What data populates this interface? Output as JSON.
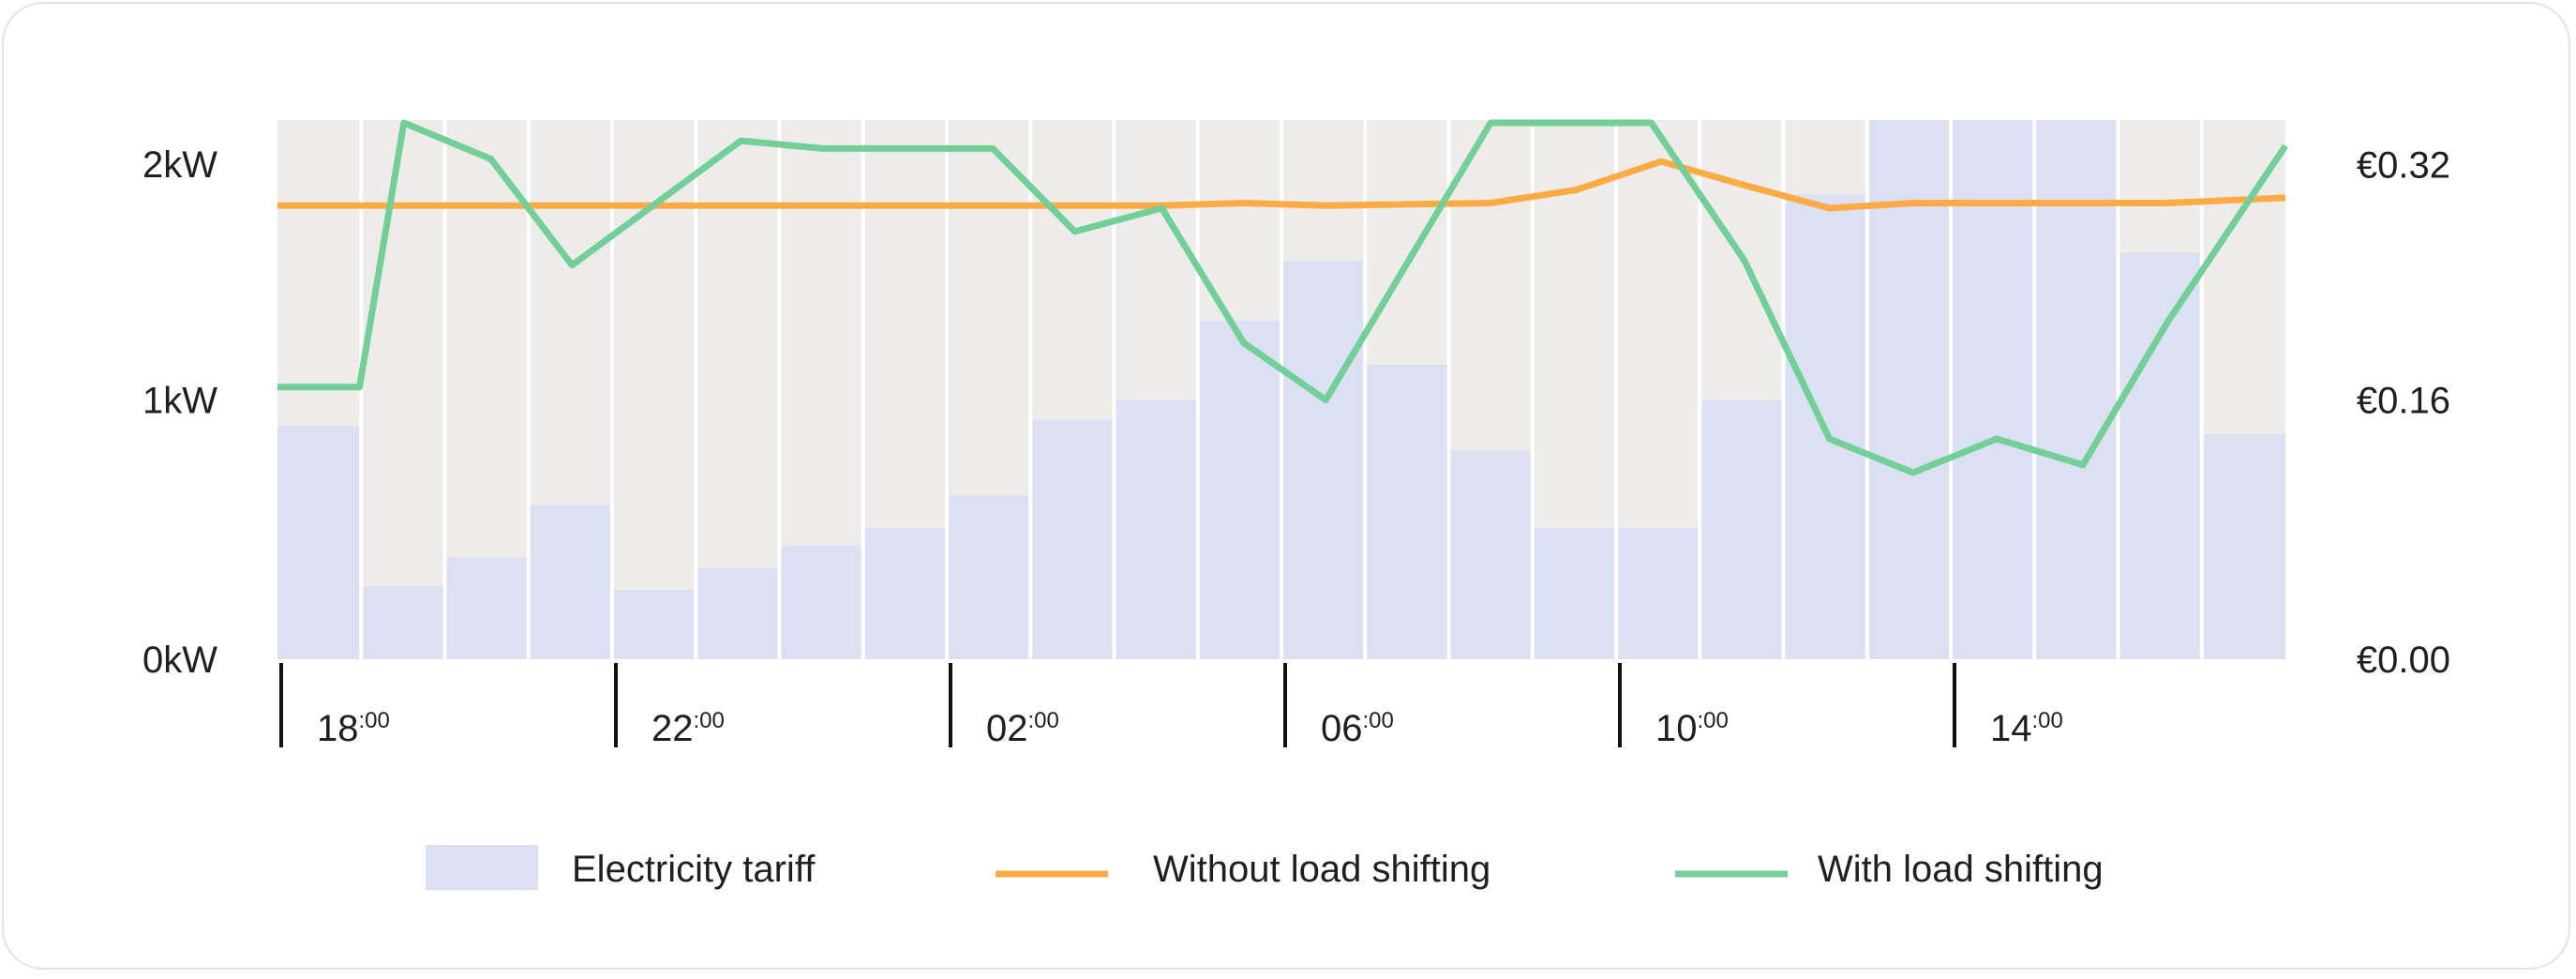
{
  "chart_data": {
    "type": "bar+line",
    "title": "",
    "x_start_hour": 18,
    "x_tick_labels": [
      {
        "hour": "18",
        "min": ":00"
      },
      {
        "hour": "22",
        "min": ":00"
      },
      {
        "hour": "02",
        "min": ":00"
      },
      {
        "hour": "06",
        "min": ":00"
      },
      {
        "hour": "10",
        "min": ":00"
      },
      {
        "hour": "14",
        "min": ":00"
      }
    ],
    "y_left": {
      "ticks": [
        {
          "v": 0,
          "label": "0kW"
        },
        {
          "v": 1,
          "label": "1kW"
        },
        {
          "v": 2,
          "label": "2kW"
        }
      ],
      "range": [
        0,
        2.08
      ]
    },
    "y_right": {
      "ticks": [
        {
          "v": 0,
          "label": "€0.00"
        },
        {
          "v": 0.16,
          "label": "€0.16"
        },
        {
          "v": 0.32,
          "label": "€0.32"
        }
      ],
      "range": [
        0,
        0.333
      ]
    },
    "bars": {
      "name": "Electricity tariff",
      "unit": "EUR/kWh",
      "values": [
        0.144,
        0.045,
        0.063,
        0.095,
        0.043,
        0.056,
        0.07,
        0.081,
        0.101,
        0.148,
        0.16,
        0.209,
        0.246,
        0.182,
        0.129,
        0.081,
        0.081,
        0.16,
        0.287,
        0.333,
        0.333,
        0.333,
        0.251,
        0.139
      ]
    },
    "series": [
      {
        "name": "Without load shifting",
        "unit": "kW",
        "points": [
          [
            0,
            1.75
          ],
          [
            10.57,
            1.75
          ],
          [
            11.55,
            1.76
          ],
          [
            12.53,
            1.75
          ],
          [
            14.5,
            1.76
          ],
          [
            15.52,
            1.81
          ],
          [
            16.54,
            1.92
          ],
          [
            17.52,
            1.83
          ],
          [
            18.55,
            1.74
          ],
          [
            19.55,
            1.76
          ],
          [
            22.59,
            1.76
          ],
          [
            24,
            1.78
          ]
        ]
      },
      {
        "name": "With load shifting",
        "unit": "kW",
        "points": [
          [
            0,
            1.05
          ],
          [
            0.98,
            1.05
          ],
          [
            1.51,
            2.08
          ],
          [
            2.55,
            1.93
          ],
          [
            3.52,
            1.52
          ],
          [
            5.54,
            2.0
          ],
          [
            6.52,
            1.97
          ],
          [
            8.55,
            1.97
          ],
          [
            9.53,
            1.65
          ],
          [
            10.57,
            1.74
          ],
          [
            11.55,
            1.22
          ],
          [
            12.53,
            1.0
          ],
          [
            14.5,
            2.08
          ],
          [
            16.42,
            2.08
          ],
          [
            17.53,
            1.54
          ],
          [
            18.55,
            0.85
          ],
          [
            19.55,
            0.72
          ],
          [
            20.55,
            0.85
          ],
          [
            21.58,
            0.75
          ],
          [
            22.59,
            1.3
          ],
          [
            24,
            1.98
          ]
        ]
      }
    ],
    "legend": {
      "placement": "bottom",
      "items": [
        {
          "label": "Electricity tariff",
          "kind": "box"
        },
        {
          "label": "Without load shifting",
          "kind": "line"
        },
        {
          "label": "With load shifting",
          "kind": "line"
        }
      ]
    },
    "colors": {
      "bar": "#dce0f3",
      "background": "#edecea",
      "without": "#ffab45",
      "with": "#72cf98",
      "divider": "#ffffff"
    }
  }
}
